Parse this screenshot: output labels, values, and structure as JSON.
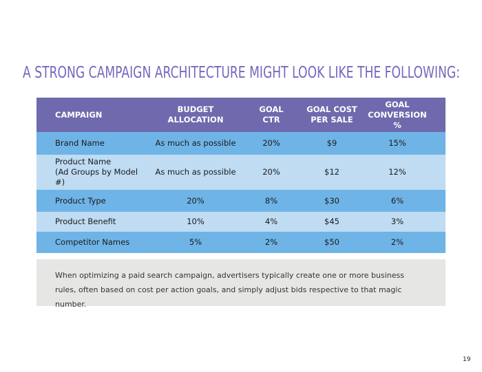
{
  "title": "A STRONG CAMPAIGN ARCHITECTURE MIGHT LOOK LIKE THE FOLLOWING:",
  "table": {
    "header": [
      [
        "CAMPAIGN"
      ],
      [
        "BUDGET",
        "ALLOCATION"
      ],
      [
        "GOAL",
        "CTR"
      ],
      [
        "GOAL COST",
        "PER SALE"
      ],
      [
        "GOAL",
        "CONVERSION %"
      ]
    ],
    "rows": [
      [
        [
          "Brand Name"
        ],
        [
          "As much as possible"
        ],
        [
          "20%"
        ],
        [
          "$9"
        ],
        [
          "15%"
        ]
      ],
      [
        [
          "Product Name",
          "(Ad Groups by Model #)"
        ],
        [
          "As much as possible"
        ],
        [
          "20%"
        ],
        [
          "$12"
        ],
        [
          "12%"
        ]
      ],
      [
        [
          "Product Type"
        ],
        [
          "20%"
        ],
        [
          "8%"
        ],
        [
          "$30"
        ],
        [
          "6%"
        ]
      ],
      [
        [
          "Product Benefit"
        ],
        [
          "10%"
        ],
        [
          "4%"
        ],
        [
          "$45"
        ],
        [
          "3%"
        ]
      ],
      [
        [
          "Competitor Names"
        ],
        [
          "5%"
        ],
        [
          "2%"
        ],
        [
          "$50"
        ],
        [
          "2%"
        ]
      ]
    ]
  },
  "note": "When optimizing a paid search campaign, advertisers typically create one or more business rules, often based on cost per action goals, and simply adjust bids respective to that magic number.",
  "page_number": "19"
}
